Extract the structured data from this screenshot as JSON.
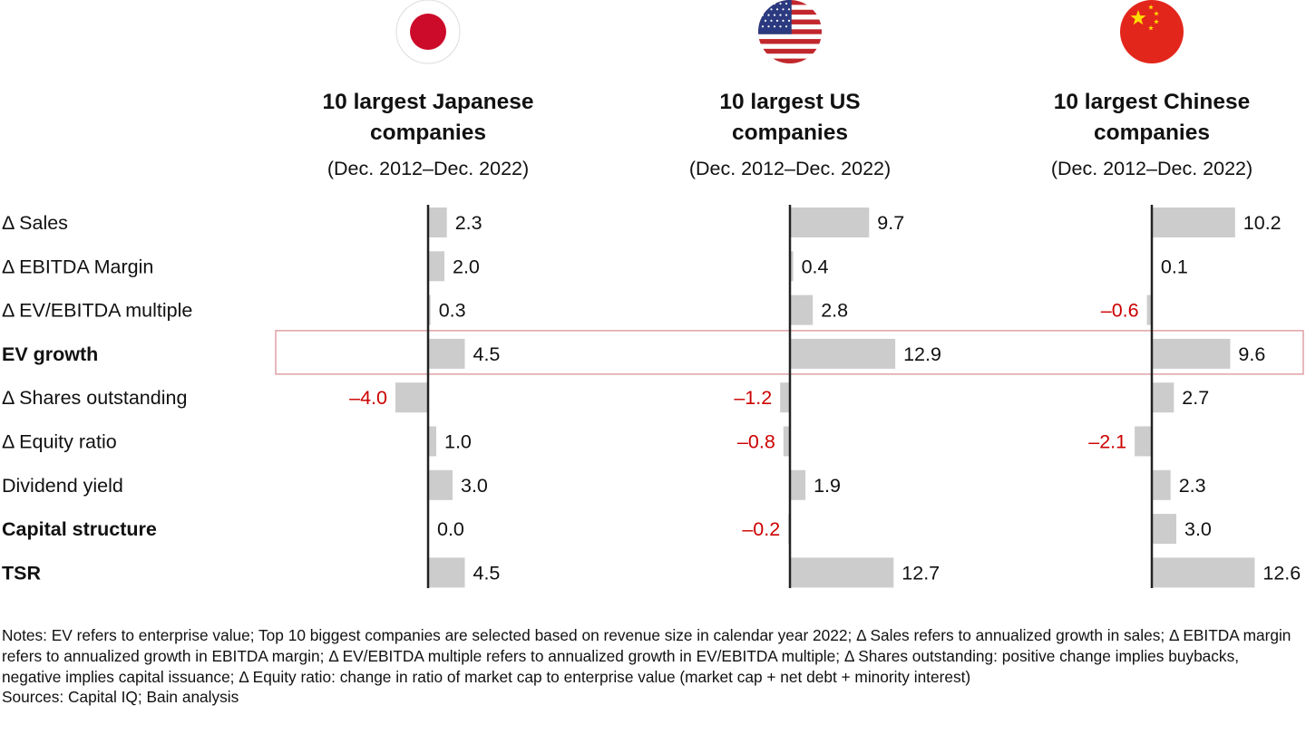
{
  "chart_data": {
    "type": "bar",
    "orientation": "horizontal",
    "categories": [
      "Δ Sales",
      "Δ EBITDA Margin",
      "Δ EV/EBITDA multiple",
      "EV growth",
      "Δ Shares outstanding",
      "Δ Equity ratio",
      "Dividend yield",
      "Capital structure",
      "TSR"
    ],
    "bold_categories": [
      "EV growth",
      "Capital structure",
      "TSR"
    ],
    "highlighted_category": "EV growth",
    "panels": [
      {
        "flag": "japan-flag",
        "title_line1": "10 largest Japanese",
        "title_line2": "companies",
        "period": "(Dec. 2012–Dec. 2022)",
        "values": [
          2.3,
          2.0,
          0.3,
          4.5,
          -4.0,
          1.0,
          3.0,
          0.0,
          4.5
        ],
        "labels": [
          "2.3",
          "2.0",
          "0.3",
          "4.5",
          "–4.0",
          "1.0",
          "3.0",
          "0.0",
          "4.5"
        ]
      },
      {
        "flag": "us-flag",
        "title_line1": "10 largest US",
        "title_line2": "companies",
        "period": "(Dec. 2012–Dec. 2022)",
        "values": [
          9.7,
          0.4,
          2.8,
          12.9,
          -1.2,
          -0.8,
          1.9,
          -0.2,
          12.7
        ],
        "labels": [
          "9.7",
          "0.4",
          "2.8",
          "12.9",
          "–1.2",
          "–0.8",
          "1.9",
          "–0.2",
          "12.7"
        ]
      },
      {
        "flag": "china-flag",
        "title_line1": "10 largest Chinese",
        "title_line2": "companies",
        "period": "(Dec. 2012–Dec. 2022)",
        "values": [
          10.2,
          0.1,
          -0.6,
          9.6,
          2.7,
          -2.1,
          2.3,
          3.0,
          12.6
        ],
        "labels": [
          "10.2",
          "0.1",
          "–0.6",
          "9.6",
          "2.7",
          "–2.1",
          "2.3",
          "3.0",
          "12.6"
        ]
      }
    ],
    "colors": {
      "bar": "#cccccc",
      "axis": "#222222",
      "negative_label": "#cc0000",
      "highlight_border": "#d9888f",
      "text": "#111111"
    }
  },
  "notes": {
    "text": "Notes: EV refers to enterprise value; Top 10 biggest companies are selected based on revenue size in calendar year 2022; Δ Sales refers to annualized growth in sales; Δ EBITDA margin refers to annualized growth in EBITDA margin; Δ EV/EBITDA multiple refers to annualized growth in EV/EBITDA multiple; Δ Shares outstanding: positive change implies buybacks, negative implies capital issuance; Δ Equity ratio: change in ratio of market cap to enterprise value (market cap + net debt + minority interest)",
    "sources": "Sources: Capital IQ; Bain analysis"
  }
}
